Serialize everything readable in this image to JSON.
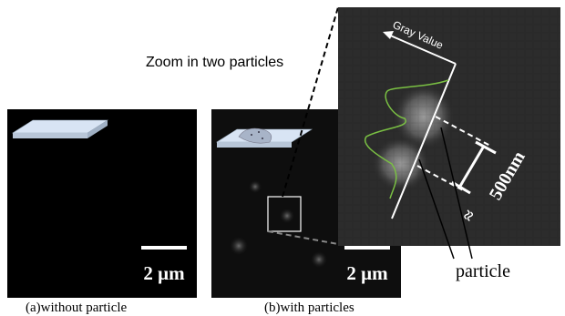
{
  "figure": {
    "zoom_label": "Zoom in two particles",
    "gray_value_label": "Gray Value",
    "size_label": "500nm",
    "approx_symbol": "≈",
    "particle_label": "particle",
    "panel_a": {
      "scale_bar": "2 μm",
      "caption": "(a)without particle"
    },
    "panel_b": {
      "scale_bar": "2 μm",
      "caption": "(b)with particles"
    }
  }
}
